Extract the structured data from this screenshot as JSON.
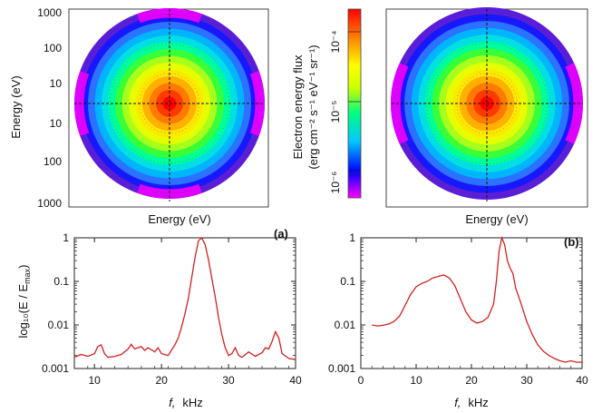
{
  "chart_data": [
    {
      "type": "heatmap",
      "subtype": "polar-distribution",
      "panel": "(a)",
      "ylabel": "Energy (eV)",
      "xlabel": "Energy (eV)",
      "y_ticks_upper": [
        "1000",
        "100",
        "10"
      ],
      "y_ticks_lower": [
        "10",
        "100",
        "1000"
      ],
      "colorbar": {
        "label_line1": "Electron energy flux",
        "label_line2": "(erg cm⁻² s⁻¹ eV⁻¹ sr⁻¹)",
        "ticks": [
          "10⁻⁴",
          "10⁻⁵",
          "10⁻⁶"
        ],
        "tick_values": [
          0.0001,
          1e-05,
          1e-06
        ],
        "colors": [
          "#ff00ff",
          "#0000ff",
          "#00c8ff",
          "#00ff80",
          "#c8ff00",
          "#ffff00",
          "#ff8000",
          "#ff0000"
        ],
        "scale": "log"
      }
    },
    {
      "type": "heatmap",
      "subtype": "polar-distribution",
      "panel": "(b)",
      "xlabel": "Energy (eV)"
    },
    {
      "type": "line",
      "panel": "(a)",
      "ylabel": "log₁₀(E / E",
      "ylabel_sub": "max",
      "ylabel_end": ")",
      "xlabel": "f,",
      "xlabel_unit": "kHz",
      "xlim": [
        7,
        40
      ],
      "ylim": [
        0.001,
        1
      ],
      "yscale": "log",
      "x_ticks": [
        "10",
        "20",
        "30",
        "40"
      ],
      "y_ticks": [
        "1",
        "0.1",
        "0.01",
        "0.001"
      ],
      "line_color": "#d42020",
      "series": [
        {
          "x": [
            7,
            8,
            9,
            10,
            10.5,
            11,
            11.5,
            12,
            13,
            14,
            15,
            15.5,
            16,
            17,
            17.5,
            18,
            19,
            19.5,
            20,
            21,
            22,
            22.5,
            23,
            23.5,
            24,
            24.5,
            25,
            25.5,
            26,
            26.5,
            27,
            27.5,
            28,
            28.5,
            29,
            29.5,
            30,
            30.5,
            31,
            31.5,
            32,
            33,
            34,
            35,
            35.5,
            36,
            36.5,
            37,
            37.5,
            38,
            39,
            40
          ],
          "y": [
            0.0018,
            0.0021,
            0.0019,
            0.0022,
            0.0032,
            0.0035,
            0.0022,
            0.0018,
            0.0019,
            0.0021,
            0.0028,
            0.0036,
            0.0028,
            0.0032,
            0.0026,
            0.003,
            0.0024,
            0.003,
            0.0022,
            0.002,
            0.0035,
            0.005,
            0.009,
            0.018,
            0.04,
            0.12,
            0.35,
            0.85,
            1.0,
            0.7,
            0.32,
            0.12,
            0.045,
            0.015,
            0.006,
            0.003,
            0.002,
            0.0022,
            0.003,
            0.002,
            0.0018,
            0.0024,
            0.0019,
            0.0023,
            0.003,
            0.0028,
            0.0042,
            0.007,
            0.005,
            0.0022,
            0.0017,
            0.0016
          ]
        }
      ]
    },
    {
      "type": "line",
      "panel": "(b)",
      "xlabel": "f,",
      "xlabel_unit": "kHz",
      "xlim": [
        0,
        40
      ],
      "ylim": [
        0.001,
        1
      ],
      "yscale": "log",
      "x_ticks": [
        "0",
        "10",
        "20",
        "30",
        "40"
      ],
      "y_ticks": [
        "1",
        "0.1",
        "0.01",
        "0.001"
      ],
      "line_color": "#d42020",
      "series": [
        {
          "x": [
            2,
            3,
            4,
            5,
            6,
            7,
            8,
            9,
            10,
            11,
            12,
            13,
            14,
            15,
            16,
            17,
            18,
            19,
            20,
            21,
            22,
            23,
            24,
            24.5,
            25,
            25.5,
            26,
            26.5,
            27,
            27.5,
            28,
            29,
            30,
            31,
            32,
            33,
            34,
            35,
            36,
            37,
            38,
            39,
            40
          ],
          "y": [
            0.01,
            0.0095,
            0.0098,
            0.0105,
            0.012,
            0.016,
            0.028,
            0.05,
            0.075,
            0.09,
            0.1,
            0.12,
            0.13,
            0.14,
            0.12,
            0.08,
            0.04,
            0.02,
            0.013,
            0.011,
            0.012,
            0.015,
            0.03,
            0.1,
            0.5,
            1.0,
            0.7,
            0.3,
            0.2,
            0.15,
            0.07,
            0.03,
            0.012,
            0.006,
            0.0035,
            0.0025,
            0.002,
            0.0017,
            0.0015,
            0.0014,
            0.0015,
            0.0014,
            0.0014
          ]
        }
      ]
    }
  ]
}
